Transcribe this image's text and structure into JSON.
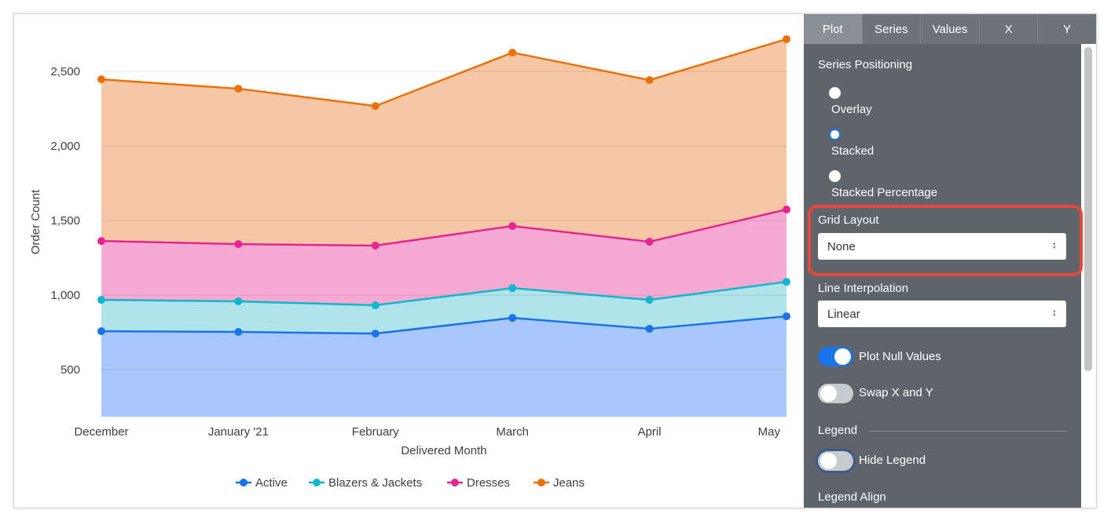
{
  "chart_data": {
    "type": "area",
    "stacked": true,
    "categories": [
      "December",
      "January '21",
      "February",
      "March",
      "April",
      "May"
    ],
    "xlabel": "Delivered Month",
    "ylabel": "Order Count",
    "ylim": [
      185,
      2800
    ],
    "yticks": [
      500,
      1000,
      1500,
      2000,
      2500
    ],
    "ytick_labels": [
      "500",
      "1,000",
      "1,500",
      "2,000",
      "2,500"
    ],
    "grid": true,
    "legend_position": "bottom",
    "series": [
      {
        "name": "Active",
        "color": "#1a73e8",
        "fill": "#a8c7fa",
        "values": [
          758,
          753,
          742,
          847,
          774,
          858
        ]
      },
      {
        "name": "Blazers & Jackets",
        "color": "#12b5cb",
        "fill": "#b0e3ea",
        "values": [
          210,
          205,
          190,
          200,
          194,
          231
        ]
      },
      {
        "name": "Dresses",
        "color": "#e52592",
        "fill": "#f6a9d2",
        "values": [
          395,
          384,
          400,
          416,
          390,
          485
        ]
      },
      {
        "name": "Jeans",
        "color": "#e8710a",
        "fill": "#f7c6a5",
        "values": [
          1084,
          1042,
          936,
          1163,
          1084,
          1142
        ]
      }
    ]
  },
  "panel": {
    "tabs": [
      "Plot",
      "Series",
      "Values",
      "X",
      "Y"
    ],
    "active_tab": "Plot",
    "series_positioning": {
      "label": "Series Positioning",
      "options": [
        "Overlay",
        "Stacked",
        "Stacked Percentage"
      ],
      "selected": "Stacked"
    },
    "grid_layout": {
      "label": "Grid Layout",
      "value": "None"
    },
    "line_interpolation": {
      "label": "Line Interpolation",
      "value": "Linear"
    },
    "plot_null_values": {
      "label": "Plot Null Values",
      "on": true
    },
    "swap_xy": {
      "label": "Swap X and Y",
      "on": false
    },
    "legend_section": "Legend",
    "hide_legend": {
      "label": "Hide Legend",
      "on": false
    },
    "legend_align": "Legend Align",
    "highlight_color": "#e8473c"
  }
}
